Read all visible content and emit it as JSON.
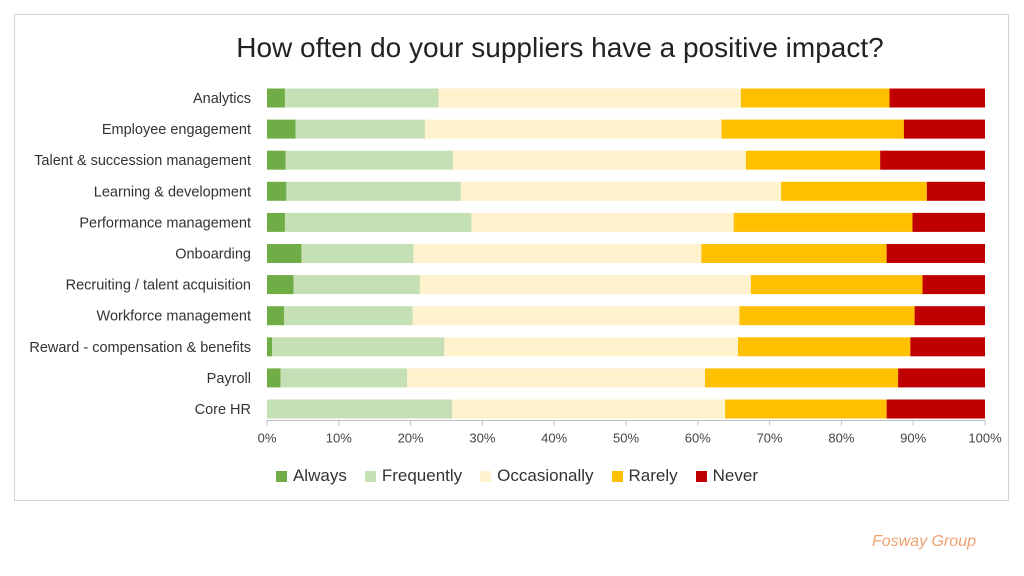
{
  "chart_data": {
    "type": "bar",
    "orientation": "horizontal",
    "stacked": true,
    "title": "How often do your suppliers have a positive impact?",
    "categories": [
      "Analytics",
      "Employee engagement",
      "Talent & succession management",
      "Learning & development",
      "Performance management",
      "Onboarding",
      "Recruiting / talent acquisition",
      "Workforce management",
      "Reward - compensation & benefits",
      "Payroll",
      "Core HR"
    ],
    "series": [
      {
        "name": "Always",
        "color": "#70ad47",
        "values": [
          2.5,
          4.0,
          2.6,
          2.7,
          2.5,
          4.8,
          3.7,
          2.4,
          0.7,
          1.9,
          0.0
        ]
      },
      {
        "name": "Frequently",
        "color": "#c5e0b4",
        "values": [
          21.4,
          18.0,
          23.3,
          24.3,
          26.0,
          15.6,
          17.6,
          17.9,
          24.0,
          17.6,
          25.8
        ]
      },
      {
        "name": "Occasionally",
        "color": "#fff2cc",
        "values": [
          42.1,
          41.3,
          40.8,
          44.6,
          36.5,
          40.1,
          46.1,
          45.5,
          40.9,
          41.5,
          38.0
        ]
      },
      {
        "name": "Rarely",
        "color": "#ffc000",
        "values": [
          20.7,
          25.4,
          18.7,
          20.3,
          24.9,
          25.8,
          23.9,
          24.4,
          24.0,
          26.9,
          22.5
        ]
      },
      {
        "name": "Never",
        "color": "#c00000",
        "values": [
          13.3,
          11.3,
          14.6,
          8.1,
          10.1,
          13.7,
          8.7,
          9.8,
          10.4,
          12.1,
          13.7
        ]
      }
    ],
    "xlim": [
      0,
      100
    ],
    "xticks": [
      "0%",
      "10%",
      "20%",
      "30%",
      "40%",
      "50%",
      "60%",
      "70%",
      "80%",
      "90%",
      "100%"
    ],
    "grid": false,
    "legend_position": "bottom"
  },
  "source_label": "Fosway Group"
}
